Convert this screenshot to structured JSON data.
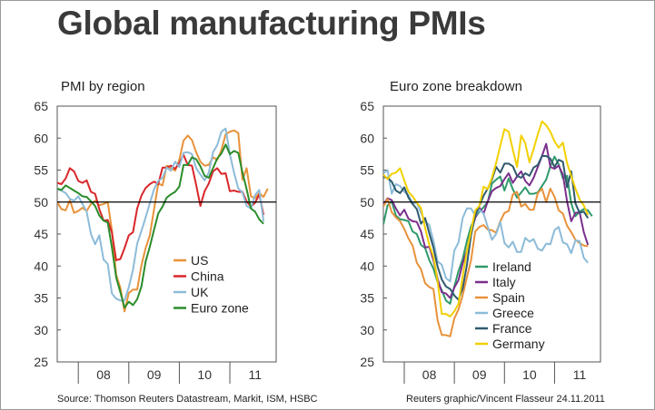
{
  "page": {
    "title": "Global manufacturing PMIs",
    "source_left": "Source: Thomson Reuters Datastream, Markit, ISM, HSBC",
    "source_right": "Reuters graphic/Vincent Flasseur 24.11.2011"
  },
  "chart_data": [
    {
      "type": "line",
      "title": "PMI by region",
      "xlabel": "",
      "ylabel": "",
      "ylim": [
        25,
        65
      ],
      "yticks": [
        25,
        30,
        35,
        40,
        45,
        50,
        55,
        60,
        65
      ],
      "xlim": [
        2007.583,
        2011.9167
      ],
      "xticks": [
        {
          "label": "08",
          "value": 2008.5
        },
        {
          "label": "09",
          "value": 2009.5
        },
        {
          "label": "10",
          "value": 2010.5
        },
        {
          "label": "11",
          "value": 2011.5
        }
      ],
      "reference_line": 50,
      "grid": false,
      "legend": "bottom-right",
      "series": [
        {
          "name": "US",
          "color": "#e8923a",
          "start": 2007.583,
          "step": 0.08333,
          "values": [
            50.0,
            48.9,
            48.7,
            50.3,
            48.3,
            48.6,
            49.1,
            48.6,
            49.7,
            50.2,
            49.5,
            49.7,
            50.0,
            45.6,
            38.6,
            36.6,
            32.9,
            35.8,
            36.3,
            36.3,
            40.1,
            42.8,
            44.8,
            48.9,
            52.9,
            52.6,
            55.7,
            55.3,
            54.9,
            56.6,
            59.6,
            60.4,
            59.7,
            57.8,
            56.3,
            55.7,
            55.8,
            57.0,
            56.6,
            58.1,
            60.6,
            61.0,
            61.2,
            60.8,
            53.5,
            55.3,
            50.9,
            50.6,
            51.4,
            50.8,
            52.1
          ]
        },
        {
          "name": "China",
          "color": "#d9262a",
          "start": 2007.583,
          "step": 0.08333,
          "values": [
            53.0,
            52.8,
            53.7,
            55.3,
            54.8,
            53.3,
            53.0,
            53.4,
            51.6,
            51.3,
            48.9,
            47.1,
            47.2,
            45.2,
            40.9,
            41.1,
            42.8,
            44.8,
            45.3,
            49.0,
            51.0,
            52.2,
            52.8,
            53.2,
            52.8,
            55.4,
            55.4,
            55.7,
            55.2,
            56.1,
            57.4,
            55.8,
            55.7,
            52.7,
            49.4,
            51.7,
            52.9,
            54.8,
            55.3,
            54.4,
            54.5,
            51.7,
            51.8,
            51.6,
            51.6,
            50.1,
            49.3,
            49.9,
            51.2,
            48.0
          ]
        },
        {
          "name": "UK",
          "color": "#8dbbd8",
          "start": 2007.583,
          "step": 0.08333,
          "values": [
            52.0,
            51.8,
            51.4,
            50.5,
            50.2,
            50.9,
            49.7,
            48.5,
            45.0,
            43.4,
            44.8,
            41.0,
            40.3,
            35.7,
            34.9,
            34.6,
            34.6,
            36.7,
            39.4,
            43.5,
            45.5,
            47.6,
            49.8,
            52.0,
            53.3,
            53.8,
            55.4,
            54.9,
            56.3,
            55.5,
            57.7,
            57.8,
            57.5,
            55.3,
            54.3,
            53.4,
            54.6,
            57.8,
            58.9,
            61.0,
            61.5,
            57.5,
            54.6,
            52.1,
            51.5,
            49.4,
            49.0,
            51.1,
            51.9,
            47.0
          ]
        },
        {
          "name": "Euro zone",
          "color": "#2b8c2b",
          "start": 2007.583,
          "step": 0.08333,
          "values": [
            52.1,
            51.9,
            52.6,
            52.2,
            51.8,
            51.4,
            50.9,
            50.8,
            50.1,
            49.4,
            47.9,
            47.1,
            46.8,
            42.9,
            38.2,
            35.9,
            33.5,
            34.4,
            33.9,
            34.8,
            36.8,
            40.7,
            43.0,
            45.7,
            48.2,
            49.3,
            50.7,
            51.2,
            51.6,
            52.4,
            55.8,
            55.8,
            57.0,
            56.7,
            55.6,
            54.1,
            53.8,
            55.3,
            56.8,
            57.6,
            59.0,
            57.5,
            58.0,
            57.7,
            54.6,
            52.0,
            49.0,
            48.5,
            47.3,
            46.6
          ]
        }
      ]
    },
    {
      "type": "line",
      "title": "Euro zone breakdown",
      "xlabel": "",
      "ylabel": "",
      "ylim": [
        25,
        65
      ],
      "yticks": [
        25,
        30,
        35,
        40,
        45,
        50,
        55,
        60,
        65
      ],
      "xlim": [
        2007.583,
        2011.9167
      ],
      "xticks": [
        {
          "label": "08",
          "value": 2008.5
        },
        {
          "label": "09",
          "value": 2009.5
        },
        {
          "label": "10",
          "value": 2010.5
        },
        {
          "label": "11",
          "value": 2011.5
        }
      ],
      "reference_line": 50,
      "grid": false,
      "legend": "bottom-right",
      "series": [
        {
          "name": "Ireland",
          "color": "#2f9a6a",
          "start": 2007.583,
          "step": 0.08333,
          "values": [
            46.5,
            49.5,
            50.1,
            47.9,
            47.3,
            47.2,
            47.0,
            45.4,
            45.0,
            43.3,
            42.8,
            40.9,
            39.6,
            37.5,
            36.2,
            34.6,
            34.1,
            36.8,
            39.2,
            41.1,
            43.9,
            46.2,
            47.6,
            48.5,
            49.2,
            50.0,
            52.9,
            53.5,
            54.0,
            51.8,
            53.7,
            52.0,
            50.7,
            51.5,
            52.3,
            51.3,
            51.3,
            51.5,
            52.5,
            53.5,
            55.6,
            57.1,
            55.9,
            53.7,
            54.1,
            49.8,
            47.8,
            48.5,
            48.9,
            48.7,
            47.8
          ]
        },
        {
          "name": "Italy",
          "color": "#7b2f8c",
          "start": 2007.583,
          "step": 0.08333,
          "values": [
            49.6,
            50.6,
            50.3,
            49.0,
            47.9,
            48.8,
            47.4,
            47.0,
            46.9,
            45.4,
            42.9,
            43.0,
            40.9,
            38.0,
            35.9,
            35.7,
            35.0,
            36.6,
            37.8,
            40.4,
            42.4,
            45.4,
            47.5,
            49.1,
            48.2,
            50.1,
            51.7,
            52.2,
            52.5,
            53.6,
            54.5,
            53.0,
            54.0,
            54.8,
            53.3,
            52.6,
            53.8,
            55.5,
            57.2,
            59.1,
            55.5,
            55.2,
            55.7,
            54.3,
            50.1,
            47.0,
            48.3,
            48.4,
            45.3,
            43.3
          ]
        },
        {
          "name": "Spain",
          "color": "#e8923a",
          "start": 2007.583,
          "step": 0.08333,
          "values": [
            49.3,
            50.5,
            48.4,
            47.6,
            47.0,
            45.8,
            44.3,
            43.2,
            40.5,
            39.5,
            37.3,
            36.7,
            36.4,
            31.5,
            29.2,
            29.2,
            29.0,
            31.8,
            33.2,
            35.4,
            38.2,
            40.9,
            45.4,
            46.1,
            46.4,
            45.7,
            45.6,
            45.2,
            47.0,
            48.3,
            48.6,
            51.2,
            51.6,
            49.3,
            49.7,
            48.8,
            48.8,
            51.4,
            52.1,
            50.0,
            52.1,
            50.8,
            48.7,
            48.2,
            46.3,
            45.3,
            44.1,
            43.6,
            43.2,
            43.1
          ]
        },
        {
          "name": "Greece",
          "color": "#8dbbd8",
          "start": 2007.583,
          "step": 0.08333,
          "values": [
            54.5,
            55.0,
            51.3,
            52.8,
            52.5,
            51.6,
            51.1,
            49.8,
            49.9,
            48.3,
            47.0,
            46.4,
            43.9,
            40.7,
            40.2,
            38.1,
            37.6,
            42.4,
            43.7,
            47.5,
            49.0,
            49.0,
            47.9,
            48.8,
            48.2,
            46.1,
            44.1,
            45.0,
            46.9,
            43.6,
            42.9,
            43.8,
            42.2,
            42.2,
            44.4,
            43.8,
            44.2,
            42.7,
            42.4,
            43.5,
            43.4,
            45.6,
            46.1,
            43.7,
            43.4,
            42.0,
            44.0,
            43.9,
            41.3,
            40.5
          ]
        },
        {
          "name": "France",
          "color": "#2f5a6e",
          "start": 2007.583,
          "step": 0.08333,
          "values": [
            53.9,
            53.8,
            53.2,
            51.8,
            51.4,
            52.3,
            50.7,
            49.7,
            48.9,
            46.6,
            47.5,
            45.1,
            42.9,
            39.9,
            37.9,
            36.8,
            36.4,
            35.4,
            34.7,
            36.5,
            40.1,
            44.8,
            47.9,
            49.4,
            51.0,
            52.1,
            53.5,
            55.5,
            54.6,
            56.0,
            56.0,
            55.6,
            54.1,
            53.8,
            54.5,
            54.1,
            55.4,
            55.8,
            57.2,
            57.2,
            56.8,
            55.5,
            56.6,
            56.3,
            52.3,
            54.8,
            49.8,
            48.3,
            48.5,
            47.5
          ]
        },
        {
          "name": "Germany",
          "color": "#f2d000",
          "start": 2007.583,
          "step": 0.08333,
          "values": [
            54.3,
            53.6,
            54.4,
            54.6,
            55.3,
            53.4,
            51.6,
            50.9,
            49.9,
            49.1,
            45.9,
            43.3,
            41.5,
            37.6,
            32.5,
            32.5,
            32.1,
            32.9,
            34.1,
            38.4,
            42.3,
            45.5,
            48.7,
            49.4,
            52.4,
            52.0,
            53.8,
            56.1,
            58.8,
            61.4,
            61.0,
            58.2,
            55.5,
            60.4,
            59.2,
            56.2,
            58.3,
            60.6,
            62.6,
            62.0,
            61.0,
            59.5,
            58.5,
            59.3,
            56.1,
            54.1,
            52.1,
            50.4,
            49.5,
            48.0
          ]
        }
      ]
    }
  ]
}
